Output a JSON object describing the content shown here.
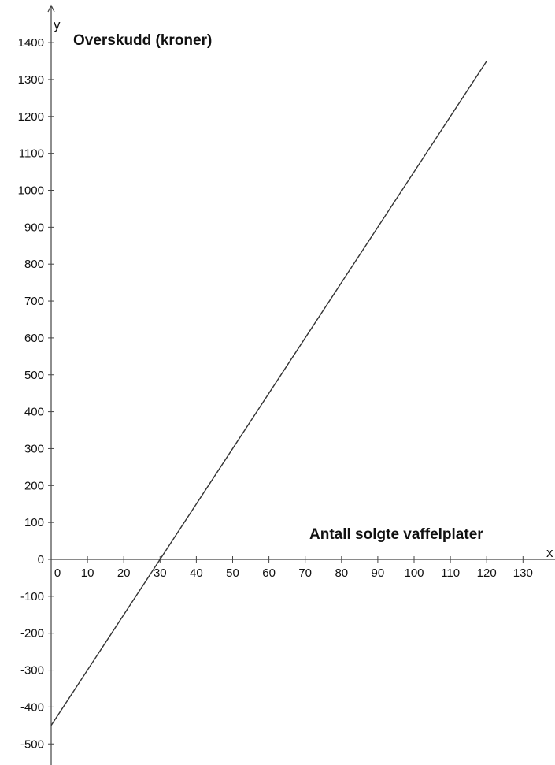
{
  "chart_data": {
    "type": "line",
    "title": "",
    "annotations": {
      "y_caption": "Overskudd (kroner)",
      "x_caption": "Antall solgte vaffelplater"
    },
    "xlabel": "x",
    "ylabel": "y",
    "xlim": [
      0,
      140
    ],
    "ylim": [
      -550,
      1450
    ],
    "x_ticks": [
      0,
      10,
      20,
      30,
      40,
      50,
      60,
      70,
      80,
      90,
      100,
      110,
      120,
      130
    ],
    "y_ticks": [
      -500,
      -400,
      -300,
      -200,
      -100,
      0,
      100,
      200,
      300,
      400,
      500,
      600,
      700,
      800,
      900,
      1000,
      1100,
      1200,
      1300,
      1400
    ],
    "grid": false,
    "series": [
      {
        "x": [
          0,
          120
        ],
        "y": [
          -450,
          1350
        ],
        "color": "#333333"
      }
    ]
  }
}
